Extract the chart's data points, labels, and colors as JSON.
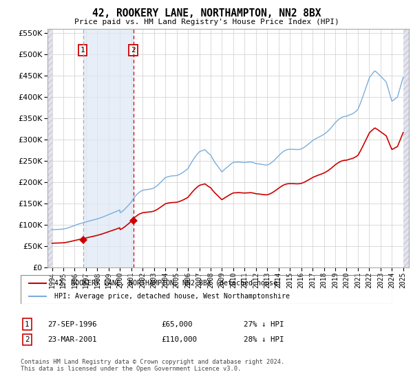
{
  "title": "42, ROOKERY LANE, NORTHAMPTON, NN2 8BX",
  "subtitle": "Price paid vs. HM Land Registry's House Price Index (HPI)",
  "legend_line1": "42, ROOKERY LANE, NORTHAMPTON, NN2 8BX (detached house)",
  "legend_line2": "HPI: Average price, detached house, West Northamptonshire",
  "table_row1": [
    "1",
    "27-SEP-1996",
    "£65,000",
    "27% ↓ HPI"
  ],
  "table_row2": [
    "2",
    "23-MAR-2001",
    "£110,000",
    "28% ↓ HPI"
  ],
  "footnote": "Contains HM Land Registry data © Crown copyright and database right 2024.\nThis data is licensed under the Open Government Licence v3.0.",
  "purchase_dates": [
    1996.74,
    2001.22
  ],
  "purchase_prices": [
    65000,
    110000
  ],
  "ylim": [
    0,
    560000
  ],
  "yticks": [
    0,
    50000,
    100000,
    150000,
    200000,
    250000,
    300000,
    350000,
    400000,
    450000,
    500000,
    550000
  ],
  "xlim_left": 1993.6,
  "xlim_right": 2025.5,
  "hpi_color": "#7aaddb",
  "price_color": "#cc0000",
  "vline1_color": "#aaaaaa",
  "vline2_color": "#cc0000",
  "shade_color": "#dde8f5",
  "hatch_color": "#d8d8e8",
  "vline1_x": 1996.74,
  "vline2_x": 2001.22,
  "hatch_left_end": 1994.0,
  "hatch_right_start": 2025.0
}
